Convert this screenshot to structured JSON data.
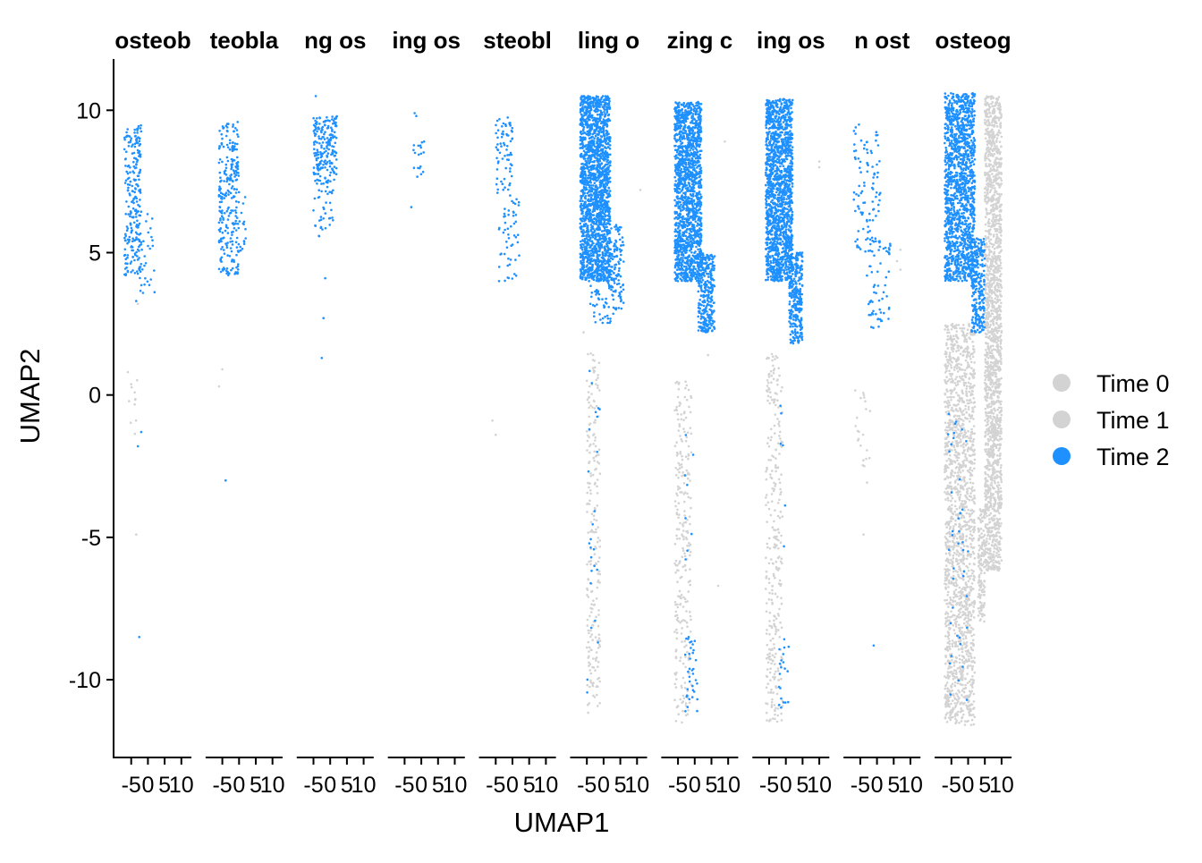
{
  "chart_data": {
    "type": "scatter",
    "facets": [
      "osteob",
      "teobla",
      "ng os",
      "ing os",
      "steobl",
      "ling o",
      "zing c",
      "ing os",
      "n ost",
      "osteog"
    ],
    "xlabel": "UMAP1",
    "ylabel": "UMAP2",
    "xlim": [
      -10,
      13
    ],
    "ylim": [
      -12.7,
      11.8
    ],
    "x_ticks": [
      -5,
      0,
      5,
      10
    ],
    "x_tick_labels": [
      "-5",
      "0",
      "5",
      "10"
    ],
    "y_ticks": [
      -10,
      -5,
      0,
      5,
      10
    ],
    "y_tick_labels": [
      "-10",
      "-5",
      "0",
      "5",
      "10"
    ],
    "grid": false,
    "legend_position": "right",
    "series": [
      {
        "name": "Time 0",
        "color": "#d3d3d3"
      },
      {
        "name": "Time 1",
        "color": "#d3d3d3"
      },
      {
        "name": "Time 2",
        "color": "#1e90ff"
      }
    ],
    "panels": [
      {
        "title": "osteob",
        "blue": [
          {
            "x": [
              -7,
              -2
            ],
            "y": [
              4.2,
              9.5
            ],
            "n": 240
          },
          {
            "x": [
              -3,
              2
            ],
            "y": [
              3.5,
              6.5
            ],
            "n": 30
          }
        ],
        "blue_pts": [
          [
            -2,
            -1.3
          ],
          [
            -3,
            -1.8
          ],
          [
            -2.6,
            -8.5
          ],
          [
            -3.5,
            3.3
          ]
        ],
        "gray": [
          {
            "x": [
              -6,
              -3
            ],
            "y": [
              -1.5,
              1
            ],
            "n": 12
          }
        ],
        "gray_pts": [
          [
            -3.5,
            -4.9
          ],
          [
            -3,
            3.2
          ]
        ]
      },
      {
        "title": "teobla",
        "blue": [
          {
            "x": [
              -6,
              0
            ],
            "y": [
              4.2,
              9.6
            ],
            "n": 260
          },
          {
            "x": [
              -1,
              2
            ],
            "y": [
              5,
              7
            ],
            "n": 20
          }
        ],
        "blue_pts": [
          [
            -4,
            -3.0
          ]
        ],
        "gray": [],
        "gray_pts": [
          [
            -6,
            0.3
          ],
          [
            -5,
            0.9
          ]
        ]
      },
      {
        "title": "ng os",
        "blue": [
          {
            "x": [
              -5,
              2
            ],
            "y": [
              7.5,
              9.8
            ],
            "n": 200
          },
          {
            "x": [
              -5,
              1
            ],
            "y": [
              5.5,
              7.5
            ],
            "n": 40
          }
        ],
        "blue_pts": [
          [
            -4.3,
            10.5
          ],
          [
            -1.5,
            4.1
          ],
          [
            -2,
            2.7
          ],
          [
            -2.5,
            1.3
          ],
          [
            -2,
            6.2
          ]
        ],
        "gray": [],
        "gray_pts": []
      },
      {
        "title": "ing os",
        "blue": [
          {
            "x": [
              -3,
              1.5
            ],
            "y": [
              7.5,
              9.0
            ],
            "n": 18
          }
        ],
        "blue_pts": [
          [
            -2,
            9.9
          ],
          [
            -1.5,
            9.8
          ],
          [
            -3,
            6.6
          ]
        ],
        "gray": [],
        "gray_pts": []
      },
      {
        "title": "steobl",
        "blue": [
          {
            "x": [
              -5,
              0
            ],
            "y": [
              7,
              9.8
            ],
            "n": 70
          },
          {
            "x": [
              -4,
              2
            ],
            "y": [
              4,
              7
            ],
            "n": 50
          }
        ],
        "blue_pts": [
          [
            -4,
            4.0
          ],
          [
            2,
            4.9
          ]
        ],
        "gray": [],
        "gray_pts": [
          [
            -6,
            -0.9
          ],
          [
            -5,
            -1.4
          ]
        ]
      },
      {
        "title": "ling o",
        "blue": [
          {
            "x": [
              -7,
              2
            ],
            "y": [
              4,
              10.5
            ],
            "n": 1800
          },
          {
            "x": [
              2,
              6
            ],
            "y": [
              3,
              6
            ],
            "n": 110
          },
          {
            "x": [
              -4,
              3
            ],
            "y": [
              2.5,
              4.5
            ],
            "n": 60
          },
          {
            "x": [
              -5,
              -1
            ],
            "y": [
              -10.5,
              1
            ],
            "n": 25
          }
        ],
        "blue_pts": [],
        "gray": [
          {
            "x": [
              -5,
              -1
            ],
            "y": [
              -11.2,
              1.5
            ],
            "n": 220
          }
        ],
        "gray_pts": [
          [
            11,
            7.2
          ],
          [
            -6,
            2.2
          ],
          [
            -5,
            0.5
          ]
        ]
      },
      {
        "title": "zing c",
        "blue": [
          {
            "x": [
              -6,
              2
            ],
            "y": [
              4,
              10.3
            ],
            "n": 1500
          },
          {
            "x": [
              1,
              6
            ],
            "y": [
              2.2,
              5
            ],
            "n": 300
          },
          {
            "x": [
              -3,
              1
            ],
            "y": [
              -11.2,
              -8.5
            ],
            "n": 35
          },
          {
            "x": [
              -3,
              0
            ],
            "y": [
              -7,
              -1
            ],
            "n": 8
          }
        ],
        "blue_pts": [],
        "gray": [
          {
            "x": [
              -6,
              -1
            ],
            "y": [
              -11.5,
              0.5
            ],
            "n": 260
          }
        ],
        "gray_pts": [
          [
            9,
            8.9
          ],
          [
            7,
            -6.7
          ],
          [
            4,
            1.4
          ],
          [
            4,
            2.9
          ]
        ]
      },
      {
        "title": "ing os",
        "blue": [
          {
            "x": [
              -6,
              2
            ],
            "y": [
              4,
              10.4
            ],
            "n": 1500
          },
          {
            "x": [
              1,
              5
            ],
            "y": [
              1.8,
              5
            ],
            "n": 300
          },
          {
            "x": [
              -2,
              1
            ],
            "y": [
              -11,
              -8.5
            ],
            "n": 20
          },
          {
            "x": [
              -2,
              0
            ],
            "y": [
              -7,
              1
            ],
            "n": 6
          }
        ],
        "blue_pts": [],
        "gray": [
          {
            "x": [
              -6,
              -1
            ],
            "y": [
              -11.5,
              1.5
            ],
            "n": 300
          }
        ],
        "gray_pts": [
          [
            10,
            8.2
          ],
          [
            10,
            8.0
          ],
          [
            4,
            3.5
          ]
        ]
      },
      {
        "title": "n ost",
        "blue": [
          {
            "x": [
              -7,
              1
            ],
            "y": [
              5,
              9.5
            ],
            "n": 100
          },
          {
            "x": [
              -3,
              4
            ],
            "y": [
              2.3,
              5.5
            ],
            "n": 60
          }
        ],
        "blue_pts": [
          [
            -1,
            -8.8
          ]
        ],
        "gray": [
          {
            "x": [
              -7,
              -2
            ],
            "y": [
              -3.5,
              0.2
            ],
            "n": 22
          }
        ],
        "gray_pts": [
          [
            -4,
            -4.9
          ],
          [
            6,
            4.7
          ],
          [
            7,
            5.1
          ],
          [
            7,
            4.4
          ],
          [
            -6,
            -0.8
          ]
        ]
      },
      {
        "title": "osteog",
        "blue": [
          {
            "x": [
              -7,
              2
            ],
            "y": [
              4,
              10.6
            ],
            "n": 1400
          },
          {
            "x": [
              1,
              5
            ],
            "y": [
              2.2,
              5.5
            ],
            "n": 250
          },
          {
            "x": [
              -6,
              0
            ],
            "y": [
              -11.3,
              -0.5
            ],
            "n": 40
          }
        ],
        "blue_pts": [],
        "gray": [
          {
            "x": [
              5,
              10
            ],
            "y": [
              -6.2,
              10.5
            ],
            "n": 1800
          },
          {
            "x": [
              -7,
              2
            ],
            "y": [
              -11.6,
              2.5
            ],
            "n": 1600
          },
          {
            "x": [
              3,
              5
            ],
            "y": [
              -8,
              -4
            ],
            "n": 150
          }
        ],
        "gray_pts": []
      }
    ]
  }
}
